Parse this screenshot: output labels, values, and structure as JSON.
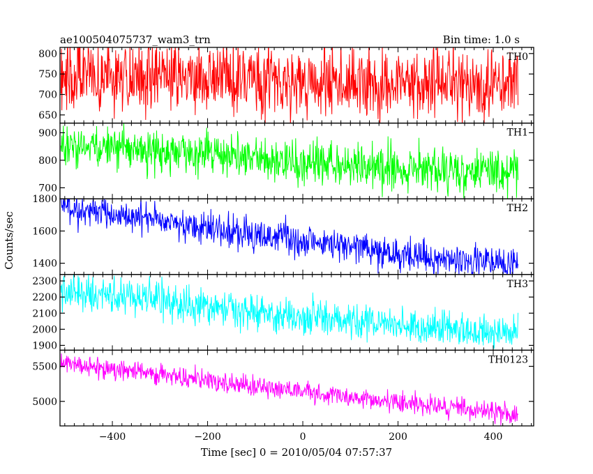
{
  "chart_data": {
    "type": "line",
    "title": "ae100504075737_wam3_trn",
    "subtitle": "Bin time: 1.0 s",
    "xlabel": "Time [sec] 0 = 2010/05/04 07:57:37",
    "ylabel": "Counts/sec",
    "x_range": [
      -508,
      452
    ],
    "xlim": [
      -510,
      485
    ],
    "x_ticks": [
      -400,
      -200,
      0,
      200,
      400
    ],
    "bin_time_s": 1.0,
    "grid": false,
    "legend": "none",
    "series": [
      {
        "name": "TH0",
        "color": "#ff0000",
        "ylim": [
          630,
          815
        ],
        "y_ticks": [
          650,
          700,
          750,
          800
        ],
        "trend": [
          [
            -508,
            750
          ],
          [
            -400,
            746
          ],
          [
            -200,
            740
          ],
          [
            0,
            733
          ],
          [
            200,
            727
          ],
          [
            452,
            720
          ]
        ],
        "spread": 45
      },
      {
        "name": "TH1",
        "color": "#00ff00",
        "ylim": [
          660,
          935
        ],
        "y_ticks": [
          700,
          800,
          900
        ],
        "trend": [
          [
            -508,
            850
          ],
          [
            -400,
            845
          ],
          [
            -200,
            820
          ],
          [
            0,
            790
          ],
          [
            200,
            772
          ],
          [
            452,
            755
          ]
        ],
        "spread": 40
      },
      {
        "name": "TH2",
        "color": "#0000ff",
        "ylim": [
          1330,
          1800
        ],
        "y_ticks": [
          1400,
          1600,
          1800
        ],
        "trend": [
          [
            -508,
            1740
          ],
          [
            -400,
            1700
          ],
          [
            -200,
            1620
          ],
          [
            0,
            1540
          ],
          [
            200,
            1455
          ],
          [
            452,
            1390
          ]
        ],
        "spread": 50
      },
      {
        "name": "TH3",
        "color": "#00ffff",
        "ylim": [
          1870,
          2340
        ],
        "y_ticks": [
          1900,
          2000,
          2100,
          2200,
          2300
        ],
        "trend": [
          [
            -508,
            2240
          ],
          [
            -400,
            2210
          ],
          [
            -200,
            2140
          ],
          [
            0,
            2080
          ],
          [
            200,
            2020
          ],
          [
            452,
            1970
          ]
        ],
        "spread": 55
      },
      {
        "name": "TH0123",
        "color": "#ff00ff",
        "ylim": [
          4650,
          5730
        ],
        "y_ticks": [
          5000,
          5500
        ],
        "trend": [
          [
            -508,
            5560
          ],
          [
            -400,
            5470
          ],
          [
            -200,
            5300
          ],
          [
            0,
            5130
          ],
          [
            200,
            4980
          ],
          [
            452,
            4830
          ]
        ],
        "spread": 75
      }
    ]
  }
}
